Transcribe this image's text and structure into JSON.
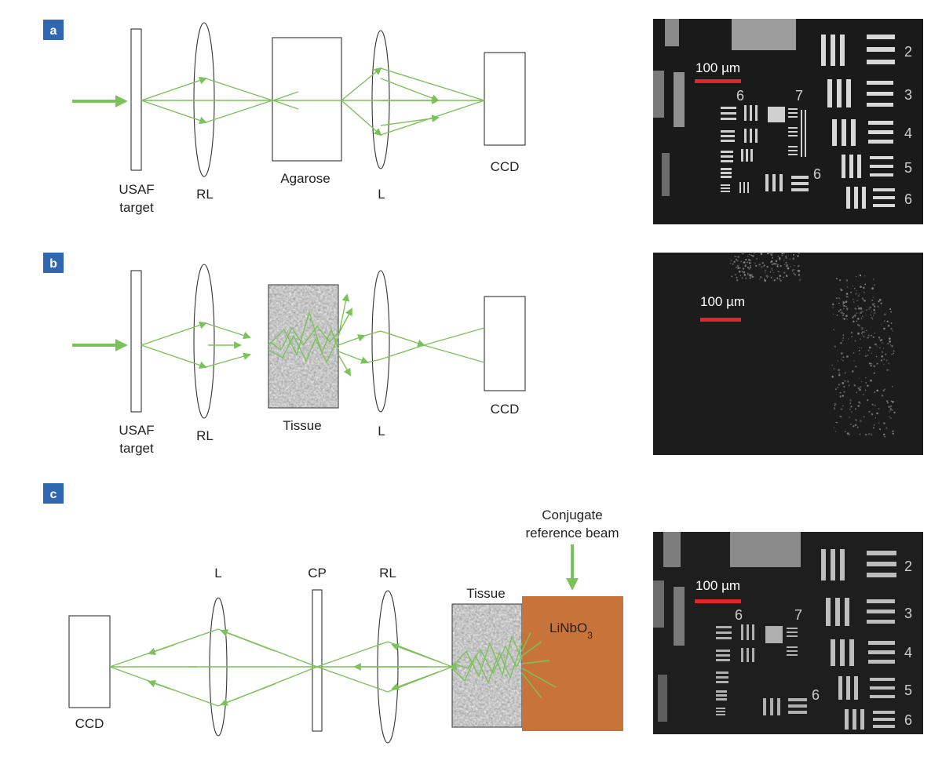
{
  "colors": {
    "ray": "#7cc25a",
    "badge": "#2f67b1",
    "crystal": "#c8733a",
    "scale_bar": "#e0262a",
    "photo_bg": "#1a1a1a"
  },
  "panel_a": {
    "badge": "a",
    "labels": {
      "target_line1": "USAF",
      "target_line2": "target",
      "rl": "RL",
      "agarose": "Agarose",
      "lens": "L",
      "ccd": "CCD"
    },
    "image": {
      "scale_label": "100 µm",
      "group_6": "6",
      "group_7": "7",
      "element_6": "6",
      "numbers": [
        "2",
        "3",
        "4",
        "5",
        "6"
      ]
    }
  },
  "panel_b": {
    "badge": "b",
    "labels": {
      "target_line1": "USAF",
      "target_line2": "target",
      "rl": "RL",
      "tissue": "Tissue",
      "lens": "L",
      "ccd": "CCD"
    },
    "image": {
      "scale_label": "100 µm"
    }
  },
  "panel_c": {
    "badge": "c",
    "labels": {
      "ccd": "CCD",
      "lens": "L",
      "cp": "CP",
      "rl": "RL",
      "tissue": "Tissue",
      "beam_line1": "Conjugate",
      "beam_line2": "reference beam",
      "crystal_main": "LiNbO",
      "crystal_sub": "3"
    },
    "image": {
      "scale_label": "100 µm",
      "group_6": "6",
      "group_7": "7",
      "element_6": "6",
      "numbers": [
        "2",
        "3",
        "4",
        "5",
        "6"
      ]
    }
  }
}
